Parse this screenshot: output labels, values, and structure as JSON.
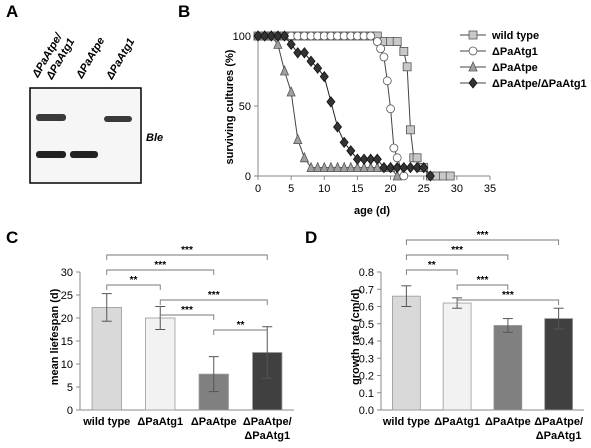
{
  "panels": {
    "a": "A",
    "b": "B",
    "c": "C",
    "d": "D"
  },
  "gel": {
    "lanes": [
      {
        "line1": "ΔPaAtpe/",
        "line2": "ΔPaAtg1"
      },
      {
        "line1": "ΔPaAtpe",
        "line2": ""
      },
      {
        "line1": "ΔPaAtg1",
        "line2": ""
      }
    ],
    "band_label": "Ble"
  },
  "chart_data": [
    {
      "id": "B",
      "type": "line",
      "title": "",
      "xlabel": "age (d)",
      "ylabel": "surviving cultures (%)",
      "xlim": [
        0,
        35
      ],
      "ylim": [
        0,
        100
      ],
      "xticks": [
        0,
        5,
        10,
        15,
        20,
        25,
        30,
        35
      ],
      "yticks": [
        0,
        50,
        100
      ],
      "grid": false,
      "legend_position": "top-right",
      "series": [
        {
          "name": "wild type",
          "marker": "square",
          "color": "#c8c8c8",
          "x": [
            0,
            1,
            2,
            3,
            4,
            5,
            6,
            7,
            8,
            9,
            10,
            11,
            12,
            13,
            14,
            15,
            16,
            17,
            18,
            19,
            20,
            21,
            22,
            22.5,
            23,
            23.5,
            24,
            24.5,
            25,
            26,
            27,
            28,
            29
          ],
          "y": [
            100,
            100,
            100,
            100,
            100,
            100,
            100,
            100,
            100,
            100,
            100,
            100,
            100,
            100,
            100,
            100,
            100,
            100,
            100,
            96,
            96,
            96,
            89,
            78,
            33,
            13,
            13,
            6,
            6,
            0,
            0,
            0,
            0
          ]
        },
        {
          "name": "ΔPaAtg1",
          "marker": "circle",
          "color": "#ffffff",
          "x": [
            0,
            1,
            2,
            3,
            4,
            5,
            6,
            7,
            8,
            9,
            10,
            11,
            12,
            13,
            14,
            15,
            16,
            17,
            18,
            18.5,
            19,
            19.5,
            20,
            20.5,
            21,
            22
          ],
          "y": [
            100,
            100,
            100,
            100,
            100,
            100,
            100,
            100,
            100,
            100,
            100,
            100,
            100,
            100,
            100,
            100,
            100,
            100,
            96,
            91,
            85,
            68,
            48,
            20,
            13,
            0
          ]
        },
        {
          "name": "ΔPaAtpe",
          "marker": "triangle",
          "color": "#a0a0a0",
          "x": [
            0,
            1,
            2,
            3,
            4,
            5,
            6,
            7,
            8,
            9,
            10,
            11,
            12,
            13,
            14,
            15,
            16,
            17,
            18,
            19,
            20,
            21
          ],
          "y": [
            100,
            100,
            100,
            94,
            75,
            60,
            26,
            13,
            6,
            6,
            6,
            6,
            6,
            6,
            6,
            6,
            6,
            6,
            6,
            6,
            6,
            0
          ]
        },
        {
          "name": "ΔPaAtpe/ΔPaAtg1",
          "marker": "diamond",
          "color": "#333333",
          "x": [
            0,
            1,
            2,
            3,
            4,
            5,
            6,
            7,
            8,
            9,
            10,
            11,
            12,
            13,
            14,
            15,
            16,
            17,
            18,
            19,
            20,
            21,
            22,
            23,
            24,
            25,
            26
          ],
          "y": [
            100,
            100,
            100,
            100,
            100,
            94,
            88,
            88,
            82,
            77,
            71,
            53,
            35,
            24,
            18,
            12,
            12,
            12,
            12,
            6,
            6,
            6,
            6,
            6,
            6,
            6,
            0
          ]
        }
      ]
    },
    {
      "id": "C",
      "type": "bar",
      "title": "",
      "xlabel": "",
      "ylabel": "mean liefespan (d)",
      "categories": [
        {
          "line1": "wild type",
          "line2": ""
        },
        {
          "line1": "ΔPaAtg1",
          "line2": ""
        },
        {
          "line1": "ΔPaAtpe",
          "line2": ""
        },
        {
          "line1": "ΔPaAtpe/",
          "line2": "ΔPaAtg1"
        }
      ],
      "values": [
        22.3,
        20.0,
        7.8,
        12.5
      ],
      "errors": [
        3.0,
        2.5,
        3.8,
        5.6
      ],
      "colors": [
        "#d9d9d9",
        "#f2f2f2",
        "#808080",
        "#404040"
      ],
      "ylim": [
        0,
        30
      ],
      "yticks": [
        0,
        5,
        10,
        15,
        20,
        25,
        30
      ],
      "significance": [
        {
          "from": 0,
          "to": 3,
          "label": "***"
        },
        {
          "from": 0,
          "to": 2,
          "label": "***"
        },
        {
          "from": 0,
          "to": 1,
          "label": "**"
        },
        {
          "from": 1,
          "to": 3,
          "label": "***"
        },
        {
          "from": 1,
          "to": 2,
          "label": "***"
        },
        {
          "from": 2,
          "to": 3,
          "label": "**"
        }
      ]
    },
    {
      "id": "D",
      "type": "bar",
      "title": "",
      "xlabel": "",
      "ylabel": "growth rate (cm/d)",
      "categories": [
        {
          "line1": "wild type",
          "line2": ""
        },
        {
          "line1": "ΔPaAtg1",
          "line2": ""
        },
        {
          "line1": "ΔPaAtpe",
          "line2": ""
        },
        {
          "line1": "ΔPaAtpe/",
          "line2": "ΔPaAtg1"
        }
      ],
      "values": [
        0.66,
        0.62,
        0.49,
        0.53
      ],
      "errors": [
        0.06,
        0.03,
        0.04,
        0.06
      ],
      "colors": [
        "#d9d9d9",
        "#f2f2f2",
        "#808080",
        "#404040"
      ],
      "ylim": [
        0,
        0.8
      ],
      "yticks": [
        0,
        0.1,
        0.2,
        0.3,
        0.4,
        0.5,
        0.6,
        0.7,
        0.8
      ],
      "yticklabels": [
        "0.0",
        "0.1",
        "0.2",
        "0.3",
        "0.4",
        "0.5",
        "0.6",
        "0.7",
        "0.8"
      ],
      "significance": [
        {
          "from": 0,
          "to": 3,
          "label": "***"
        },
        {
          "from": 0,
          "to": 2,
          "label": "***"
        },
        {
          "from": 0,
          "to": 1,
          "label": "**"
        },
        {
          "from": 1,
          "to": 2,
          "label": "***"
        },
        {
          "from": 1,
          "to": 3,
          "label": "***"
        }
      ]
    }
  ]
}
